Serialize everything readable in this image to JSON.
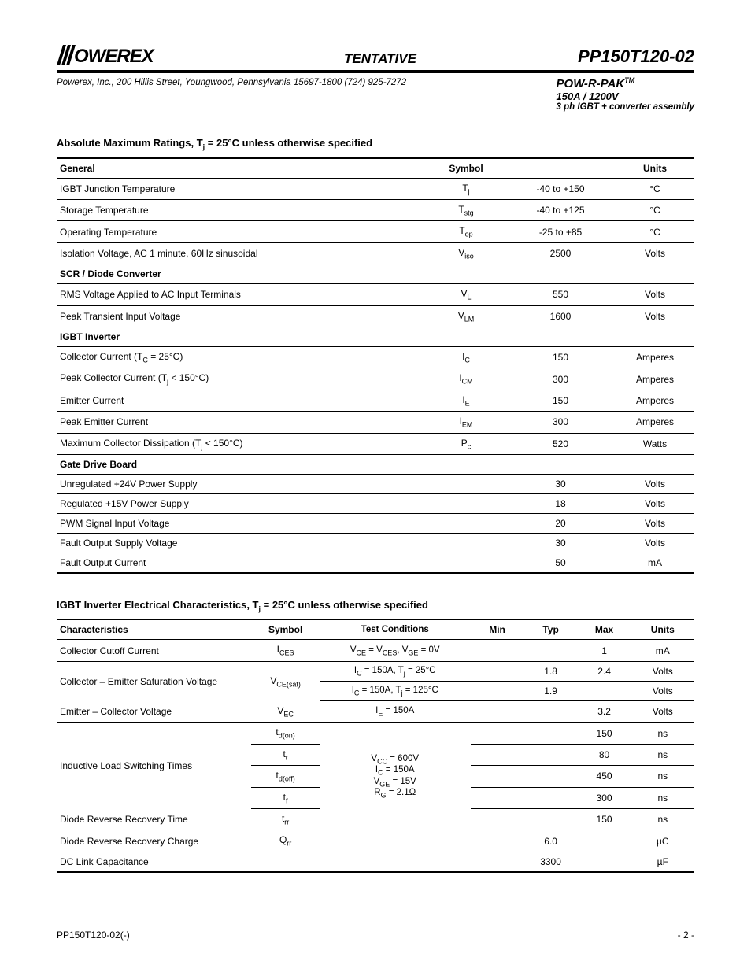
{
  "header": {
    "tentative": "TENTATIVE",
    "part_number": "PP150T120-02",
    "company_info": "Powerex, Inc., 200 Hillis Street, Youngwood, Pennsylvania 15697-1800  (724) 925-7272",
    "product_name": "POW-R-PAK",
    "product_tm": "TM",
    "product_spec": "150A / 1200V",
    "product_desc": "3 ph IGBT + converter assembly"
  },
  "section1_title_a": "Absolute Maximum Ratings, T",
  "section1_title_b": " = 25°C unless otherwise specified",
  "table1": {
    "headers": {
      "general": "General",
      "symbol": "Symbol",
      "units": "Units"
    },
    "general_rows": [
      {
        "name": "IGBT Junction Temperature",
        "sym": "T",
        "sub": "j",
        "val": "-40 to +150",
        "unit": "°C"
      },
      {
        "name": "Storage Temperature",
        "sym": "T",
        "sub": "stg",
        "val": "-40 to +125",
        "unit": "°C"
      },
      {
        "name": "Operating Temperature",
        "sym": "T",
        "sub": "op",
        "val": "-25 to +85",
        "unit": "°C"
      },
      {
        "name": "Isolation Voltage, AC 1 minute, 60Hz sinusoidal",
        "sym": "V",
        "sub": "iso",
        "val": "2500",
        "unit": "Volts"
      }
    ],
    "scr_header": "SCR / Diode Converter",
    "scr_rows": [
      {
        "name": "RMS Voltage Applied to AC Input Terminals",
        "sym": "V",
        "sub": "L",
        "val": "550",
        "unit": "Volts"
      },
      {
        "name": "Peak Transient Input Voltage",
        "sym": "V",
        "sub": "LM",
        "val": "1600",
        "unit": "Volts"
      }
    ],
    "igbt_header": "IGBT Inverter",
    "igbt_rows": [
      {
        "name": "Collector Current (T",
        "name_sub": "C",
        "name_suf": " = 25°C)",
        "sym": "I",
        "sub": "C",
        "val": "150",
        "unit": "Amperes"
      },
      {
        "name": "Peak Collector Current (T",
        "name_sub": "j",
        "name_suf": " < 150°C)",
        "sym": "I",
        "sub": "CM",
        "val": "300",
        "unit": "Amperes"
      },
      {
        "name": "Emitter Current",
        "sym": "I",
        "sub": "E",
        "val": "150",
        "unit": "Amperes"
      },
      {
        "name": "Peak Emitter Current",
        "sym": "I",
        "sub": "EM",
        "val": "300",
        "unit": "Amperes"
      },
      {
        "name": "Maximum Collector Dissipation (T",
        "name_sub": "j",
        "name_suf": " < 150°C)",
        "sym": "P",
        "sub": "c",
        "val": "520",
        "unit": "Watts"
      }
    ],
    "gate_header": "Gate Drive Board",
    "gate_rows": [
      {
        "name": "Unregulated +24V Power Supply",
        "sym": "",
        "sub": "",
        "val": "30",
        "unit": "Volts"
      },
      {
        "name": "Regulated +15V Power Supply",
        "sym": "",
        "sub": "",
        "val": "18",
        "unit": "Volts"
      },
      {
        "name": "PWM Signal Input Voltage",
        "sym": "",
        "sub": "",
        "val": "20",
        "unit": "Volts"
      },
      {
        "name": "Fault Output Supply Voltage",
        "sym": "",
        "sub": "",
        "val": "30",
        "unit": "Volts"
      },
      {
        "name": "Fault Output Current",
        "sym": "",
        "sub": "",
        "val": "50",
        "unit": "mA"
      }
    ]
  },
  "section2_title_a": "IGBT Inverter Electrical Characteristics, T",
  "section2_title_b": " = 25°C unless otherwise specified",
  "table2": {
    "headers": {
      "char": "Characteristics",
      "symbol": "Symbol",
      "cond": "Test Conditions",
      "min": "Min",
      "typ": "Typ",
      "max": "Max",
      "units": "Units"
    },
    "rows": {
      "r1": {
        "char": "Collector Cutoff Current",
        "sym": "I",
        "sub": "CES",
        "cond_html": "V<sub>CE</sub> = V<sub>CES</sub>, V<sub>GE</sub> = 0V",
        "min": "",
        "typ": "",
        "max": "1",
        "unit": "mA"
      },
      "r2": {
        "char": "Collector – Emitter Saturation Voltage",
        "sym": "V",
        "sub": "CE(sat)",
        "cond1_html": "I<sub>C</sub> = 150A, T<sub>j</sub> = 25°C",
        "typ1": "1.8",
        "max1": "2.4",
        "unit1": "Volts",
        "cond2_html": "I<sub>C</sub> = 150A, T<sub>j</sub> = 125°C",
        "typ2": "1.9",
        "max2": "",
        "unit2": "Volts"
      },
      "r3": {
        "char": "Emitter – Collector Voltage",
        "sym": "V",
        "sub": "EC",
        "cond_html": "I<sub>E</sub> = 150A",
        "min": "",
        "typ": "",
        "max": "3.2",
        "unit": "Volts"
      },
      "r4": {
        "char": "Inductive Load Switching Times",
        "s1": "t",
        "sub1": "d(on)",
        "max1": "150",
        "u1": "ns",
        "s2": "t",
        "sub2": "r",
        "max2": "80",
        "u2": "ns",
        "s3": "t",
        "sub3": "d(off)",
        "max3": "450",
        "u3": "ns",
        "s4": "t",
        "sub4": "f",
        "max4": "300",
        "u4": "ns",
        "cond_html": "V<sub>CC</sub> = 600V<br>I<sub>C</sub> = 150A<br>V<sub>GE</sub> = 15V<br>R<sub>G</sub> = 2.1Ω"
      },
      "r5": {
        "char": "Diode Reverse Recovery Time",
        "sym": "t",
        "sub": "rr",
        "max": "150",
        "unit": "ns"
      },
      "r6": {
        "char": "Diode Reverse Recovery Charge",
        "sym": "Q",
        "sub": "rr",
        "typ": "6.0",
        "unit": "µC"
      },
      "r7": {
        "char": "DC Link Capacitance",
        "typ": "3300",
        "unit": "µF"
      }
    }
  },
  "footer": {
    "left": "PP150T120-02(-)",
    "right": "- 2 -"
  }
}
